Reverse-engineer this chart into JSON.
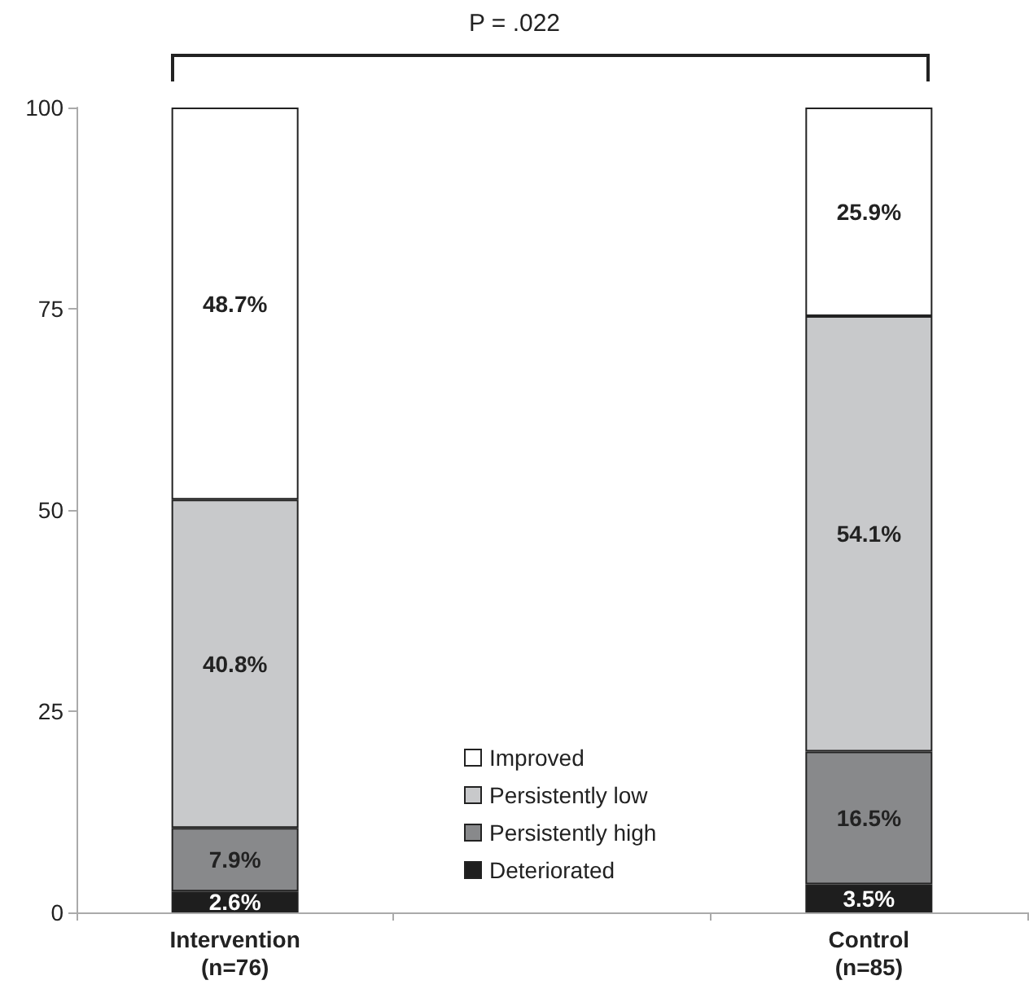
{
  "chart_data": {
    "type": "bar",
    "stacked": true,
    "categories": [
      "Intervention\n(n=76)",
      null,
      "Control\n(n=85)"
    ],
    "series": [
      {
        "name": "Deteriorated",
        "color": "#1e1e1e",
        "values": [
          2.6,
          null,
          3.5
        ],
        "value_labels": [
          "2.6%",
          null,
          "3.5%"
        ]
      },
      {
        "name": "Persistently high",
        "color": "#88898b",
        "values": [
          7.9,
          null,
          16.5
        ],
        "value_labels": [
          "7.9%",
          null,
          "16.5%"
        ]
      },
      {
        "name": "Persistently low",
        "color": "#c8c9cb",
        "values": [
          40.8,
          null,
          54.1
        ],
        "value_labels": [
          "40.8%",
          null,
          "54.1%"
        ]
      },
      {
        "name": "Improved",
        "color": "#ffffff",
        "values": [
          48.7,
          null,
          25.9
        ],
        "value_labels": [
          "48.7%",
          null,
          "25.9%"
        ]
      }
    ],
    "ylim": [
      0,
      100
    ],
    "yticks": [
      0,
      25,
      50,
      75,
      100
    ],
    "grid": false,
    "legend": "bottom",
    "annotations": [
      "P = .022"
    ]
  }
}
